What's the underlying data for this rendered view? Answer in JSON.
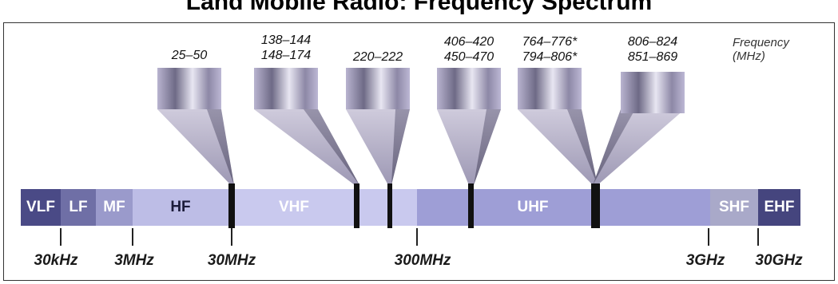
{
  "title": "Land Mobile Radio: Frequency Spectrum",
  "frequency_label": [
    "Frequency",
    "(MHz)"
  ],
  "bands": [
    {
      "name": "VLF",
      "color": "#4a4a86"
    },
    {
      "name": "LF",
      "color": "#6f6fa6"
    },
    {
      "name": "MF",
      "color": "#9a9acb"
    },
    {
      "name": "HF",
      "color": "#bdbde6"
    },
    {
      "name": "VHF",
      "color": "#c9c9ee"
    },
    {
      "name": "UHF",
      "color": "#9e9ed6"
    },
    {
      "name": "SHF",
      "color": "#a9a9c9"
    },
    {
      "name": "EHF",
      "color": "#45457e"
    }
  ],
  "tick_labels": [
    "30kHz",
    "3MHz",
    "30MHz",
    "300MHz",
    "3GHz",
    "30GHz"
  ],
  "allocations": [
    {
      "lines": [
        "25–50"
      ]
    },
    {
      "lines": [
        "138–144",
        "148–174"
      ]
    },
    {
      "lines": [
        "220–222"
      ]
    },
    {
      "lines": [
        "406–420",
        "450–470"
      ]
    },
    {
      "lines": [
        "764–776*",
        "794–806*"
      ]
    },
    {
      "lines": [
        "806–824",
        "851–869"
      ]
    }
  ]
}
